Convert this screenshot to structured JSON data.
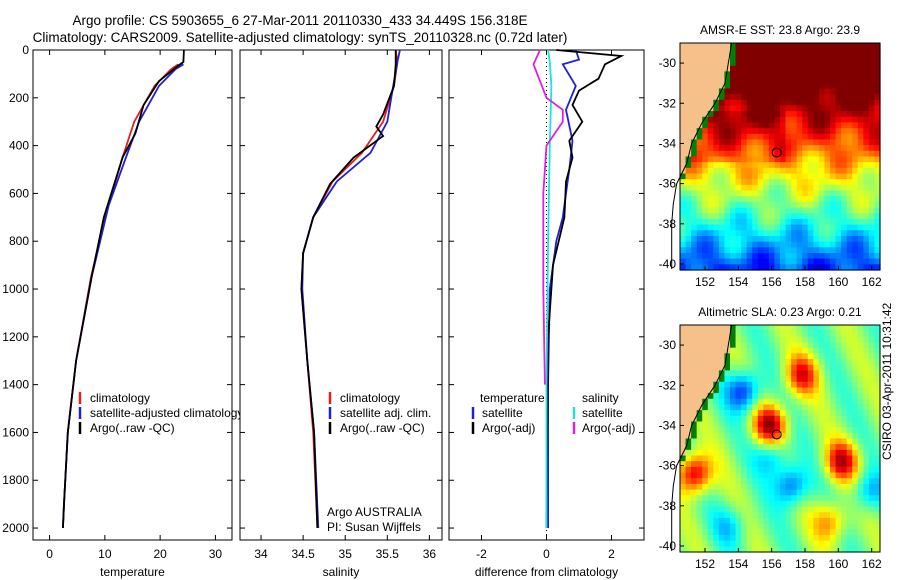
{
  "header": {
    "title_line1": "Argo profile: CS 5903655_6 27-Mar-2011 20110330_433 34.449S 156.318E",
    "title_line2": "Climatology: CARS2009. Satellite-adjusted climatology: synTS_20110328.nc (0.72d later)"
  },
  "side_credit": "CSIRO 03-Apr-2011 10:31:42",
  "chart_data": [
    {
      "id": "temperature",
      "type": "line",
      "xlabel": "temperature",
      "xlim": [
        -3,
        33
      ],
      "xticks": [
        0,
        10,
        20,
        30
      ],
      "ylim": [
        2050,
        0
      ],
      "yticks": [
        0,
        200,
        400,
        600,
        800,
        1000,
        1200,
        1400,
        1600,
        1800,
        2000
      ],
      "grid": false,
      "legend_position": "bottom-center",
      "series": [
        {
          "name": "climatology",
          "color": "#e02020",
          "x": [
            23.3,
            22,
            19,
            15.3,
            13.2,
            10,
            7.5,
            4.8,
            3.3,
            2.6,
            2.4
          ],
          "y": [
            60,
            80,
            150,
            300,
            450,
            700,
            950,
            1300,
            1600,
            1900,
            2000
          ]
        },
        {
          "name": "satellite-adjusted climatology",
          "color": "#2020d0",
          "x": [
            24.2,
            22.8,
            19.8,
            16.2,
            13.8,
            10.7,
            7.6,
            4.8,
            3.3,
            2.6,
            2.4
          ],
          "y": [
            60,
            80,
            150,
            300,
            450,
            650,
            950,
            1300,
            1600,
            1900,
            2000
          ]
        },
        {
          "name": "Argo(..raw -QC)",
          "color": "#000000",
          "x": [
            24.3,
            24.2,
            23.3,
            19.8,
            17,
            15.5,
            13.2,
            9.8,
            7.6,
            4.8,
            3.3,
            2.6,
            2.4
          ],
          "y": [
            0,
            50,
            65,
            130,
            230,
            350,
            450,
            700,
            950,
            1300,
            1600,
            1900,
            2000
          ]
        }
      ]
    },
    {
      "id": "salinity",
      "type": "line",
      "xlabel": "salinity",
      "xlim": [
        33.75,
        36.15
      ],
      "xticks": [
        34,
        34.5,
        35,
        35.5,
        36
      ],
      "ylim": [
        2050,
        0
      ],
      "grid": false,
      "legend_position": "bottom-center",
      "series": [
        {
          "name": "climatology",
          "color": "#e02020",
          "x": [
            35.6,
            35.62,
            35.58,
            35.45,
            35.2,
            34.85,
            34.62,
            34.5,
            34.48,
            34.55,
            34.62,
            34.67
          ],
          "y": [
            0,
            50,
            150,
            300,
            430,
            550,
            700,
            850,
            1000,
            1300,
            1600,
            2000
          ]
        },
        {
          "name": "satellite adj. clim.",
          "color": "#2020d0",
          "x": [
            35.65,
            35.62,
            35.57,
            35.5,
            35.3,
            34.9,
            34.62,
            34.5,
            34.49,
            34.55,
            34.63,
            34.68
          ],
          "y": [
            0,
            50,
            150,
            300,
            430,
            550,
            700,
            850,
            1000,
            1300,
            1600,
            2000
          ]
        },
        {
          "name": "Argo(..raw -QC)",
          "color": "#000000",
          "x": [
            35.6,
            35.6,
            35.58,
            35.45,
            35.37,
            35.45,
            35.1,
            34.82,
            34.62,
            34.5,
            34.48,
            34.55,
            34.63,
            34.67
          ],
          "y": [
            0,
            60,
            150,
            270,
            320,
            360,
            450,
            560,
            700,
            850,
            1000,
            1300,
            1600,
            2000
          ]
        }
      ]
    },
    {
      "id": "difference",
      "type": "line",
      "xlabel": "difference from climatology",
      "xlim": [
        -3,
        3
      ],
      "xticks": [
        -2,
        0,
        2
      ],
      "ylim": [
        2050,
        0
      ],
      "grid": false,
      "zero_line": "dotted",
      "legend_position": "bottom",
      "legend_groups": [
        "temperature",
        "salinity"
      ],
      "series": [
        {
          "name": "satellite",
          "group": "temperature",
          "color": "#2020d0",
          "x": [
            0.9,
            1.0,
            0.5,
            0.9,
            0.6,
            0.8,
            0.7,
            0.6,
            0.5,
            0.3,
            0.1,
            0.05,
            0.05
          ],
          "y": [
            0,
            40,
            60,
            150,
            250,
            380,
            500,
            600,
            700,
            800,
            1000,
            1400,
            2000
          ]
        },
        {
          "name": "Argo(-adj)",
          "group": "temperature",
          "color": "#000000",
          "x": [
            0.3,
            2.3,
            1.8,
            1.6,
            1.0,
            0.8,
            1.1,
            0.7,
            0.8,
            0.6,
            0.55,
            0.2,
            0.05,
            0.02,
            0.0
          ],
          "y": [
            0,
            25,
            60,
            120,
            170,
            230,
            300,
            380,
            450,
            550,
            700,
            900,
            1200,
            1600,
            2000
          ]
        },
        {
          "name": "satellite",
          "group": "salinity",
          "color": "#20e0e0",
          "x": [
            0.05,
            0.1,
            0.15,
            0.1,
            0.05,
            0.0,
            0.0
          ],
          "y": [
            0,
            50,
            150,
            400,
            800,
            1400,
            2000
          ]
        },
        {
          "name": "Argo(-adj)",
          "group": "salinity",
          "color": "#e020e0",
          "x": [
            -0.2,
            -0.4,
            0.0,
            0.5,
            0.5,
            0.0,
            -0.1,
            -0.1,
            -0.05
          ],
          "y": [
            0,
            60,
            200,
            250,
            300,
            400,
            600,
            1000,
            1400
          ]
        }
      ]
    },
    {
      "id": "sst-map",
      "type": "heatmap",
      "title": "AMSR-E SST: 23.8 Argo: 23.9",
      "xlim": [
        150.5,
        162.5
      ],
      "ylim": [
        -40.3,
        -29
      ],
      "xticks": [
        152,
        154,
        156,
        158,
        160,
        162
      ],
      "yticks": [
        -30,
        -32,
        -34,
        -36,
        -38,
        -40
      ],
      "marker": {
        "lon": 156.3,
        "lat": -34.45
      },
      "colors": {
        "land": "#f5c08a",
        "coast": "#008000"
      }
    },
    {
      "id": "sla-map",
      "type": "heatmap",
      "title": "Altimetric SLA: 0.23 Argo: 0.21",
      "xlim": [
        150.5,
        162.5
      ],
      "ylim": [
        -40.3,
        -29
      ],
      "xticks": [
        152,
        154,
        156,
        158,
        160,
        162
      ],
      "yticks": [
        -30,
        -32,
        -34,
        -36,
        -38,
        -40
      ],
      "marker": {
        "lon": 156.3,
        "lat": -34.45
      },
      "colors": {
        "land": "#f5c08a",
        "coast": "#008000"
      }
    }
  ],
  "legends": {
    "temperature": [
      "climatology",
      "satellite-adjusted climatology",
      "Argo(..raw -QC)"
    ],
    "salinity": [
      "climatology",
      "satellite adj. clim.",
      "Argo(..raw -QC)"
    ],
    "difference": {
      "temperature_header": "temperature",
      "salinity_header": "salinity",
      "temperature_items": [
        "satellite",
        "Argo(-adj)"
      ],
      "salinity_items": [
        "satellite",
        "Argo(-adj)"
      ]
    }
  },
  "annotation": {
    "line1": "Argo AUSTRALIA",
    "line2": "PI: Susan Wijffels"
  }
}
